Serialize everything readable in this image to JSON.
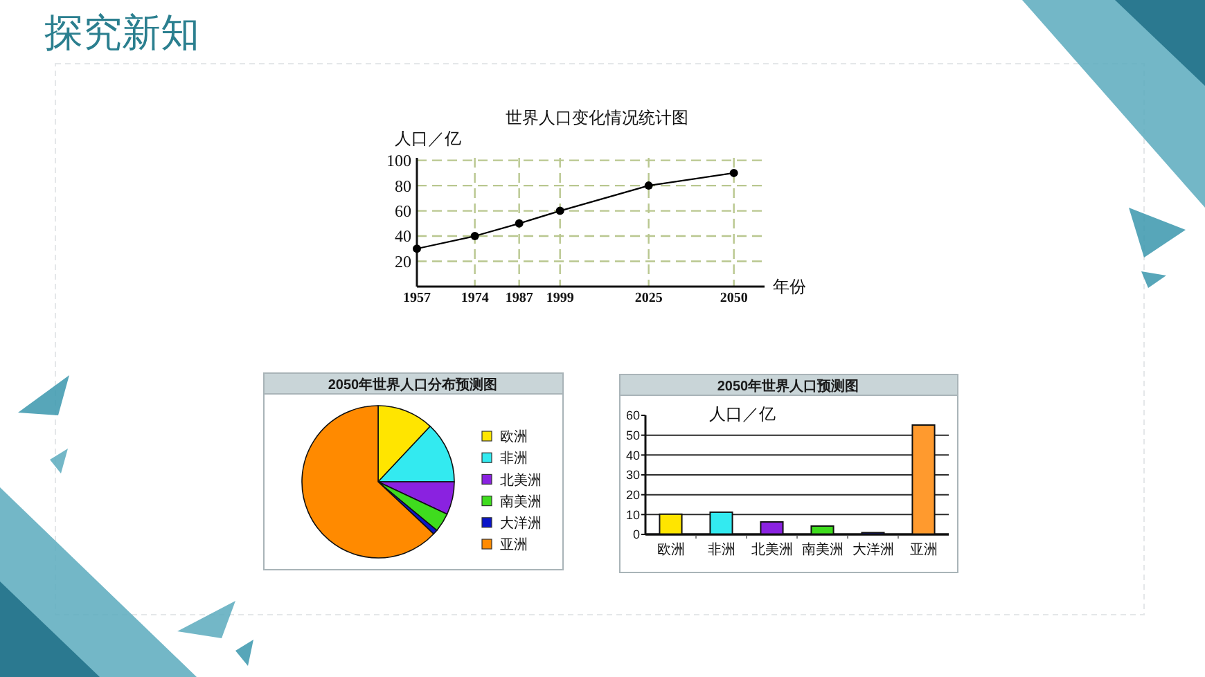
{
  "chart_data": [
    {
      "type": "other",
      "title": "探究新知"
    },
    {
      "type": "line",
      "title": "世界人口变化情况统计图",
      "ylabel": "人口／亿",
      "xlabel": "年份",
      "x": [
        1957,
        1974,
        1987,
        1999,
        2025,
        2050
      ],
      "values": [
        30,
        40,
        50,
        60,
        80,
        90
      ],
      "color": "#000000",
      "marker": "circle",
      "xlim": [
        1957,
        2059
      ],
      "xticks": [
        1957,
        1974,
        1987,
        1999,
        2025,
        2050
      ],
      "ylim": [
        0,
        102
      ],
      "yticks": [
        20,
        40,
        60,
        80,
        100
      ],
      "grid": true
    },
    {
      "type": "pie",
      "title": "2050年世界人口分布预测图",
      "categories": [
        "欧洲",
        "非洲",
        "北美洲",
        "南美洲",
        "大洋洲",
        "亚洲"
      ],
      "values": [
        12,
        13,
        7,
        4,
        1,
        63
      ],
      "colors": [
        "#ffe500",
        "#33eaf0",
        "#8a22e0",
        "#3fdc1e",
        "#0a14c8",
        "#ff8a00"
      ],
      "legend": "right"
    },
    {
      "type": "bar",
      "title": "2050年世界人口预测图",
      "ylabel": "人口／亿",
      "categories": [
        "欧洲",
        "非洲",
        "北美洲",
        "南美洲",
        "大洋洲",
        "亚洲"
      ],
      "values": [
        10.2,
        11.2,
        6.3,
        4.2,
        0.9,
        55.1
      ],
      "colors": [
        "#ffe500",
        "#33eaf0",
        "#8a22e0",
        "#3fdc1e",
        "#0a14c8",
        "#ff9a2e"
      ],
      "ylim": [
        0,
        60
      ],
      "yticks": [
        0,
        10,
        20,
        30,
        40,
        50,
        60
      ],
      "grid": "y"
    }
  ]
}
